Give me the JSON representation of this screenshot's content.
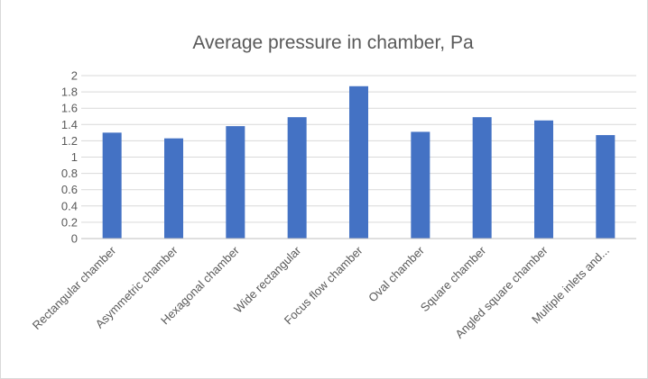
{
  "chart_data": {
    "type": "bar",
    "title": "Average pressure in chamber, Pa",
    "categories": [
      "Rectangular chamber",
      "Asymmetric chamber",
      "Hexagonal chamber",
      "Wide rectangular",
      "Focus flow chamber",
      "Oval chamber",
      "Square chamber",
      "Angled square chamber",
      "Multiple inlets and..."
    ],
    "values": [
      1.3,
      1.23,
      1.38,
      1.49,
      1.87,
      1.31,
      1.49,
      1.45,
      1.27
    ],
    "ylim": [
      0,
      2
    ],
    "yticks": [
      "0",
      "0.2",
      "0.4",
      "0.6",
      "0.8",
      "1",
      "1.2",
      "1.4",
      "1.6",
      "1.8",
      "2"
    ],
    "grid": true,
    "legend": "none",
    "bar_color": "#4472c4"
  }
}
